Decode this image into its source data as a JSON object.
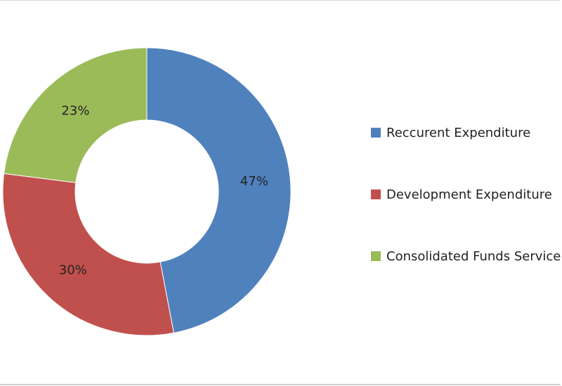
{
  "chart_data": {
    "type": "pie",
    "donut": true,
    "title": "",
    "categories": [
      "Reccurent Expenditure",
      "Development Expenditure",
      "Consolidated Funds Services"
    ],
    "values": [
      47,
      30,
      23
    ],
    "value_labels": [
      "47%",
      "30%",
      "23%"
    ],
    "colors": [
      "#4f81bd",
      "#c0504d",
      "#9bbb59"
    ],
    "legend_position": "right"
  }
}
